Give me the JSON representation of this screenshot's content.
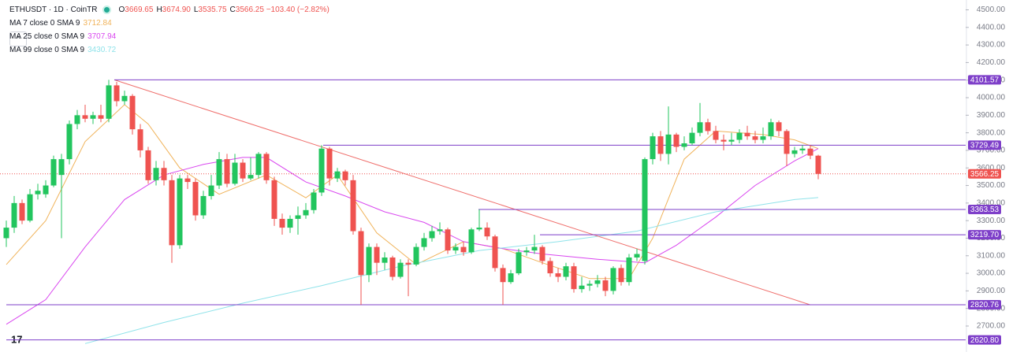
{
  "header": {
    "symbol": "ETHUSDT · 1D · CoinTR",
    "ohlc": [
      {
        "k": "O",
        "v": "3669.65"
      },
      {
        "k": "H",
        "v": "3674.90"
      },
      {
        "k": "L",
        "v": "3535.75"
      },
      {
        "k": "C",
        "v": "3566.25"
      }
    ],
    "change": "−103.40 (−2.82%)"
  },
  "chart_data": {
    "type": "candlestick",
    "up_color": "#22c55e",
    "down_color": "#ef5350",
    "open": [
      3200,
      3260,
      3400,
      3300,
      3450,
      3450,
      3500,
      3560,
      3650,
      3850,
      3900,
      3880,
      3900,
      3880,
      4070,
      3980,
      4010,
      3820,
      3700,
      3530,
      3600,
      3530,
      3160,
      3540,
      3520,
      3330,
      3440,
      3500,
      3650,
      3510,
      3630,
      3540,
      3560,
      3680,
      3530,
      3310,
      3260,
      3310,
      3330,
      3360,
      3460,
      3710,
      3540,
      3580,
      3530,
      3240,
      2990,
      3150,
      3060,
      3090,
      2980,
      3060,
      3050,
      3150,
      3200,
      3240,
      3250,
      3130,
      3150,
      3120,
      3250,
      3260,
      3210,
      3030,
      2950,
      3000,
      3120,
      3130,
      3150,
      3070,
      3000,
      2980,
      3040,
      2910,
      2930,
      2940,
      2960,
      2900,
      3030,
      2950,
      3090,
      3070,
      3650,
      3780,
      3680,
      3790,
      3720,
      3740,
      3800,
      3860,
      3810,
      3760,
      3750,
      3760,
      3800,
      3780,
      3760,
      3780,
      3860,
      3810,
      3680,
      3700,
      3710,
      3669.65
    ],
    "high": [
      3300,
      3440,
      3420,
      3480,
      3510,
      3530,
      3670,
      3680,
      3870,
      3930,
      3960,
      3920,
      3960,
      4101.57,
      4090,
      4040,
      4020,
      3850,
      3720,
      3640,
      3640,
      3560,
      3560,
      3560,
      3540,
      3470,
      3560,
      3690,
      3680,
      3680,
      3650,
      3660,
      3690,
      3690,
      3550,
      3340,
      3330,
      3380,
      3400,
      3480,
      3729.49,
      3720,
      3600,
      3590,
      3560,
      3260,
      3170,
      3170,
      3120,
      3100,
      3080,
      3080,
      3170,
      3230,
      3270,
      3290,
      3260,
      3170,
      3180,
      3260,
      3363.53,
      3290,
      3220,
      3050,
      3020,
      3140,
      3150,
      3219.7,
      3160,
      3090,
      3030,
      3060,
      3060,
      2980,
      2960,
      2990,
      2980,
      3040,
      3050,
      3110,
      3140,
      3660,
      3800,
      3810,
      3950,
      3800,
      3780,
      3830,
      3970,
      3880,
      3840,
      3790,
      3800,
      3820,
      3840,
      3810,
      3830,
      3880,
      3870,
      3820,
      3720,
      3730,
      3730,
      3674.9
    ],
    "low": [
      3150,
      3230,
      3280,
      3290,
      3420,
      3430,
      3490,
      3200,
      3620,
      3820,
      3860,
      3850,
      3860,
      3860,
      3950,
      3960,
      3790,
      3660,
      3510,
      3500,
      3500,
      3060,
      3140,
      3480,
      3300,
      3310,
      3420,
      3480,
      3490,
      3500,
      3520,
      3530,
      3540,
      3510,
      3270,
      3220,
      3230,
      3220,
      3310,
      3340,
      3440,
      3500,
      3520,
      3500,
      3220,
      2820.76,
      2950,
      2990,
      3020,
      2960,
      2970,
      2870,
      3040,
      3130,
      3180,
      3220,
      3110,
      3110,
      3100,
      3110,
      3240,
      3190,
      3010,
      2820.76,
      2940,
      2990,
      3100,
      3110,
      3050,
      2980,
      2950,
      2960,
      2890,
      2890,
      2900,
      2920,
      2870,
      2880,
      2930,
      2930,
      3070,
      3050,
      3620,
      3640,
      3620,
      3690,
      3700,
      3730,
      3780,
      3790,
      3740,
      3700,
      3730,
      3740,
      3760,
      3740,
      3740,
      3760,
      3780,
      3610,
      3660,
      3680,
      3650,
      3535.75
    ],
    "close": [
      3260,
      3400,
      3300,
      3450,
      3470,
      3500,
      3650,
      3650,
      3850,
      3900,
      3880,
      3900,
      3880,
      4070,
      3980,
      4010,
      3820,
      3700,
      3530,
      3600,
      3530,
      3160,
      3540,
      3520,
      3330,
      3440,
      3500,
      3650,
      3510,
      3630,
      3540,
      3560,
      3680,
      3530,
      3310,
      3260,
      3310,
      3330,
      3360,
      3460,
      3710,
      3540,
      3580,
      3530,
      3240,
      2990,
      3150,
      3060,
      3090,
      2980,
      3060,
      3050,
      3150,
      3200,
      3240,
      3250,
      3130,
      3150,
      3120,
      3250,
      3260,
      3210,
      3030,
      2950,
      3000,
      3120,
      3130,
      3150,
      3070,
      3000,
      2980,
      3040,
      2910,
      2930,
      2940,
      2960,
      2900,
      3030,
      2950,
      3090,
      3110,
      3650,
      3780,
      3680,
      3790,
      3720,
      3740,
      3800,
      3860,
      3810,
      3760,
      3750,
      3760,
      3800,
      3780,
      3760,
      3780,
      3860,
      3810,
      3680,
      3700,
      3710,
      3670,
      3566.25
    ],
    "ma": [
      {
        "name": "MA 7 close 0 SMA 9",
        "last": 3712.84,
        "color": "#f0b35a",
        "x": [
          0,
          5,
          10,
          15,
          18,
          22,
          27,
          33,
          38,
          42,
          47,
          52,
          58,
          63,
          68,
          74,
          79,
          82,
          86,
          90,
          96,
          100,
          103
        ],
        "values": [
          3050,
          3300,
          3750,
          3960,
          3850,
          3600,
          3450,
          3560,
          3430,
          3560,
          3230,
          3050,
          3180,
          3140,
          3060,
          2970,
          2970,
          3200,
          3650,
          3810,
          3790,
          3760,
          3710
        ]
      },
      {
        "name": "MA 25 close 0 SMA 9",
        "last": 3707.94,
        "color": "#d946ef",
        "x": [
          0,
          5,
          10,
          15,
          20,
          25,
          30,
          33,
          38,
          43,
          48,
          53,
          58,
          63,
          68,
          75,
          81,
          85,
          90,
          95,
          100,
          103
        ],
        "values": [
          2710,
          2850,
          3150,
          3420,
          3560,
          3620,
          3660,
          3660,
          3520,
          3440,
          3350,
          3290,
          3180,
          3140,
          3110,
          3080,
          3060,
          3160,
          3320,
          3500,
          3640,
          3710
        ]
      },
      {
        "name": "MA 99 close 0 SMA 9",
        "last": 3430.72,
        "color": "#8fe3ea",
        "x": [
          10,
          20,
          30,
          40,
          50,
          60,
          70,
          80,
          90,
          100,
          103
        ],
        "values": [
          2600,
          2720,
          2830,
          2930,
          3040,
          3130,
          3180,
          3240,
          3350,
          3420,
          3431
        ]
      }
    ],
    "trendline": {
      "color": "#ef6f6c",
      "x": [
        13.7,
        102
      ],
      "values": [
        4101.57,
        2820.76
      ]
    },
    "levels": [
      {
        "value": 4101.57,
        "label": "4101.57",
        "from": 13.7
      },
      {
        "value": 3729.49,
        "label": "3729.49",
        "from": 40.2
      },
      {
        "value": 3363.53,
        "label": "3363.53",
        "from": 59.9
      },
      {
        "value": 3219.7,
        "label": "3219.70",
        "from": 67.7
      },
      {
        "value": 2820.76,
        "label": "2820.76",
        "from": 0
      },
      {
        "value": 2620.8,
        "label": "2620.80",
        "from": 0
      }
    ],
    "level_color": "#7e3fc9",
    "last_price": {
      "value": 3566.25,
      "label": "3566.25"
    },
    "ylim": [
      2552,
      4556
    ],
    "yticks": [
      {
        "value": 2700,
        "label": "2700.00"
      },
      {
        "value": 2800,
        "label": "2800.00"
      },
      {
        "value": 2900,
        "label": "2900.00"
      },
      {
        "value": 3000,
        "label": "3000.00"
      },
      {
        "value": 3100,
        "label": "3100.00"
      },
      {
        "value": 3200,
        "label": "3200.00"
      },
      {
        "value": 3300,
        "label": "3300.00"
      },
      {
        "value": 3400,
        "label": "3400.00"
      },
      {
        "value": 3500,
        "label": "3500.00"
      },
      {
        "value": 3600,
        "label": "3600.00"
      },
      {
        "value": 3700,
        "label": "3700.00"
      },
      {
        "value": 3800,
        "label": "3800.00"
      },
      {
        "value": 3900,
        "label": "3900.00"
      },
      {
        "value": 4000,
        "label": "4000.00"
      },
      {
        "value": 4100,
        "label": "4100.00"
      },
      {
        "value": 4200,
        "label": "4200.00"
      },
      {
        "value": 4300,
        "label": "4300.00"
      },
      {
        "value": 4400,
        "label": "4400.00"
      },
      {
        "value": 4500,
        "label": "4500.00"
      }
    ]
  }
}
